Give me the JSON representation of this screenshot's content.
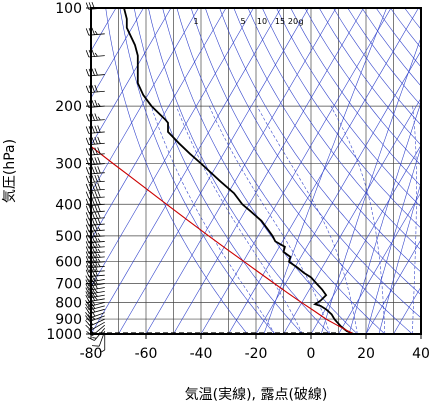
{
  "chart_data": {
    "type": "line",
    "xlabel": "気温(実線), 露点(破線)",
    "ylabel": "気圧(hPa)",
    "xlim": [
      -80,
      40
    ],
    "ylim": [
      1000,
      100
    ],
    "yscale": "log",
    "x_ticks": [
      -80,
      -60,
      -40,
      -20,
      0,
      20,
      40
    ],
    "y_ticks": [
      100,
      200,
      300,
      400,
      500,
      600,
      700,
      800,
      900,
      1000
    ],
    "mixing_ratio_labels": [
      "1",
      "5",
      "10",
      "15",
      "20",
      "g"
    ],
    "mixing_ratio_values": [
      1,
      5,
      10,
      15,
      20
    ],
    "isotherm_temps": [
      -200,
      -190,
      -180,
      -170,
      -160,
      -150,
      -140,
      -130,
      -120,
      -110,
      -100,
      -90,
      -80,
      -70,
      -60,
      -50,
      -40,
      -30,
      -20,
      -10,
      0,
      10,
      20,
      30,
      40
    ],
    "dry_adiabat_thetas": [
      250,
      260,
      270,
      280,
      290,
      300,
      310,
      320,
      330,
      340,
      350,
      360,
      370,
      380,
      390,
      400,
      410,
      420,
      430,
      440,
      450,
      460,
      470,
      480,
      490,
      500
    ],
    "moist_adiabat_thetas": [
      260,
      270,
      280,
      290,
      300,
      310,
      320,
      330,
      340
    ],
    "series": [
      {
        "role": "temperature",
        "color": "#000000",
        "points": [
          [
            1000,
            15.5
          ],
          [
            980,
            13
          ],
          [
            950,
            11
          ],
          [
            920,
            9.5
          ],
          [
            900,
            8.5
          ],
          [
            870,
            7.5
          ],
          [
            840,
            5.5
          ],
          [
            820,
            3.5
          ],
          [
            810,
            1.5
          ],
          [
            790,
            3.5
          ],
          [
            760,
            5.5
          ],
          [
            730,
            4
          ],
          [
            700,
            2
          ],
          [
            670,
            0
          ],
          [
            650,
            -2.5
          ],
          [
            625,
            -5
          ],
          [
            600,
            -8
          ],
          [
            580,
            -7.5
          ],
          [
            560,
            -10
          ],
          [
            540,
            -9.5
          ],
          [
            520,
            -13
          ],
          [
            500,
            -14
          ],
          [
            480,
            -15.5
          ],
          [
            450,
            -18
          ],
          [
            420,
            -22
          ],
          [
            400,
            -25
          ],
          [
            370,
            -28
          ],
          [
            340,
            -33
          ],
          [
            300,
            -40
          ],
          [
            280,
            -44
          ],
          [
            260,
            -48
          ],
          [
            240,
            -52
          ],
          [
            225,
            -52
          ],
          [
            220,
            -53
          ],
          [
            200,
            -58
          ],
          [
            185,
            -61
          ],
          [
            170,
            -63
          ],
          [
            160,
            -63
          ],
          [
            150,
            -63
          ],
          [
            140,
            -63
          ],
          [
            130,
            -64
          ],
          [
            115,
            -67
          ],
          [
            108,
            -67
          ],
          [
            100,
            -68
          ]
        ]
      },
      {
        "role": "dewpoint",
        "color": "#000000",
        "dash": true,
        "points": [
          [
            1000,
            9.5
          ],
          [
            1000,
            0
          ],
          [
            1000,
            -10
          ]
        ]
      },
      {
        "role": "parcel",
        "color": "#cc0000",
        "points": [
          [
            1000,
            15.5
          ],
          [
            950,
            10.5
          ],
          [
            900,
            5.5
          ],
          [
            850,
            1.2
          ],
          [
            800,
            -3.5
          ],
          [
            750,
            -8.3
          ],
          [
            700,
            -13.3
          ],
          [
            650,
            -18.6
          ],
          [
            600,
            -24.3
          ],
          [
            550,
            -30.5
          ],
          [
            500,
            -37.2
          ],
          [
            450,
            -44.5
          ],
          [
            400,
            -52.5
          ],
          [
            350,
            -61.5
          ],
          [
            300,
            -72
          ],
          [
            270,
            -79
          ],
          [
            250,
            -84
          ]
        ]
      }
    ],
    "wind_barbs": {
      "x_data": -75,
      "pressures": [
        1000,
        980,
        960,
        940,
        920,
        900,
        880,
        860,
        840,
        820,
        800,
        780,
        760,
        740,
        720,
        700,
        680,
        660,
        640,
        620,
        600,
        580,
        560,
        540,
        520,
        500,
        480,
        460,
        440,
        420,
        400,
        380,
        360,
        340,
        320,
        300,
        280,
        260,
        240,
        220,
        200,
        180,
        160,
        140,
        120,
        100
      ],
      "speeds_kt": [
        5,
        10,
        15,
        20,
        20,
        20,
        25,
        30,
        30,
        30,
        30,
        35,
        35,
        35,
        40,
        40,
        40,
        40,
        40,
        45,
        45,
        45,
        45,
        45,
        45,
        45,
        45,
        50,
        50,
        50,
        50,
        50,
        50,
        50,
        50,
        50,
        50,
        50,
        50,
        45,
        45,
        40,
        40,
        35,
        35,
        30
      ],
      "directions_deg": [
        180,
        200,
        220,
        230,
        240,
        245,
        250,
        250,
        255,
        255,
        255,
        260,
        260,
        260,
        260,
        260,
        260,
        265,
        265,
        265,
        265,
        265,
        265,
        265,
        265,
        265,
        265,
        265,
        265,
        265,
        265,
        265,
        265,
        265,
        265,
        265,
        265,
        265,
        265,
        265,
        265,
        265,
        265,
        265,
        265,
        265
      ]
    },
    "grid": true,
    "legend": "none"
  }
}
